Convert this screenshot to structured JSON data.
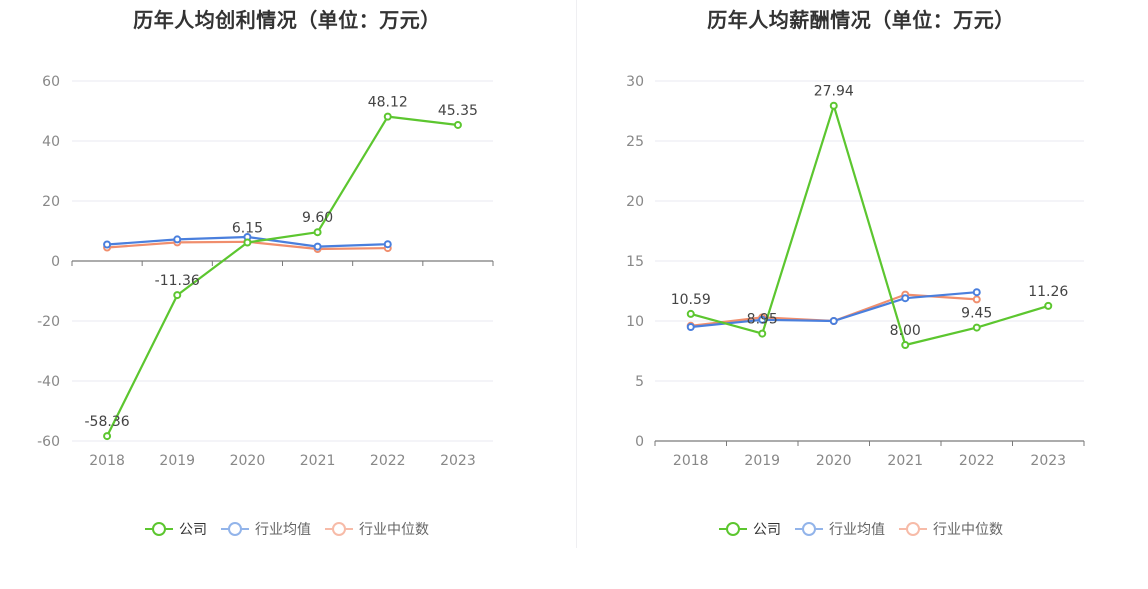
{
  "colors": {
    "company": "#5cc62f",
    "industry_avg": "#4a7fdd",
    "industry_median": "#f08e6d",
    "company_legend": "#5cc62f",
    "industry_avg_legend": "#92b4ea",
    "industry_median_legend": "#f7bba8"
  },
  "chart_data": [
    {
      "type": "line",
      "title": "历年人均创利情况（单位：万元）",
      "categories": [
        "2018",
        "2019",
        "2020",
        "2021",
        "2022",
        "2023"
      ],
      "ylim": [
        -60,
        60
      ],
      "yticks": [
        "60",
        "40",
        "20",
        "0",
        "-20",
        "-40",
        "-60"
      ],
      "legend": [
        "公司",
        "行业均值",
        "行业中位数"
      ],
      "series": [
        {
          "name": "公司",
          "key": "company",
          "values": [
            -58.36,
            -11.36,
            6.15,
            9.6,
            48.12,
            45.35
          ]
        },
        {
          "name": "行业均值",
          "key": "industry_avg",
          "values": [
            5.5,
            7.2,
            8.0,
            4.8,
            5.6,
            null
          ]
        },
        {
          "name": "行业中位数",
          "key": "industry_median",
          "values": [
            4.5,
            6.2,
            6.4,
            4.0,
            4.3,
            null
          ]
        }
      ],
      "data_labels": [
        {
          "cat": 0,
          "value": -58.36,
          "text": "-58.36",
          "pos": "above"
        },
        {
          "cat": 1,
          "value": -11.36,
          "text": "-11.36",
          "pos": "above"
        },
        {
          "cat": 2,
          "value": 6.15,
          "text": "6.15",
          "pos": "above"
        },
        {
          "cat": 3,
          "value": 9.6,
          "text": "9.60",
          "pos": "above"
        },
        {
          "cat": 4,
          "value": 48.12,
          "text": "48.12",
          "pos": "above"
        },
        {
          "cat": 5,
          "value": 45.35,
          "text": "45.35",
          "pos": "above"
        }
      ]
    },
    {
      "type": "line",
      "title": "历年人均薪酬情况（单位：万元）",
      "categories": [
        "2018",
        "2019",
        "2020",
        "2021",
        "2022",
        "2023"
      ],
      "ylim": [
        0,
        30
      ],
      "yticks": [
        "30",
        "25",
        "20",
        "15",
        "10",
        "5",
        "0"
      ],
      "legend": [
        "公司",
        "行业均值",
        "行业中位数"
      ],
      "series": [
        {
          "name": "公司",
          "key": "company",
          "values": [
            10.59,
            8.95,
            27.94,
            8.0,
            9.45,
            11.26
          ]
        },
        {
          "name": "行业均值",
          "key": "industry_avg",
          "values": [
            9.5,
            10.1,
            10.0,
            11.9,
            12.4,
            null
          ]
        },
        {
          "name": "行业中位数",
          "key": "industry_median",
          "values": [
            9.6,
            10.3,
            10.0,
            12.2,
            11.8,
            null
          ]
        }
      ],
      "data_labels": [
        {
          "cat": 0,
          "value": 10.59,
          "text": "10.59",
          "pos": "above"
        },
        {
          "cat": 1,
          "value": 8.95,
          "text": "8.95",
          "pos": "above"
        },
        {
          "cat": 2,
          "value": 27.94,
          "text": "27.94",
          "pos": "above"
        },
        {
          "cat": 3,
          "value": 8.0,
          "text": "8.00",
          "pos": "above"
        },
        {
          "cat": 4,
          "value": 9.45,
          "text": "9.45",
          "pos": "above"
        },
        {
          "cat": 5,
          "value": 11.26,
          "text": "11.26",
          "pos": "above"
        }
      ]
    }
  ]
}
